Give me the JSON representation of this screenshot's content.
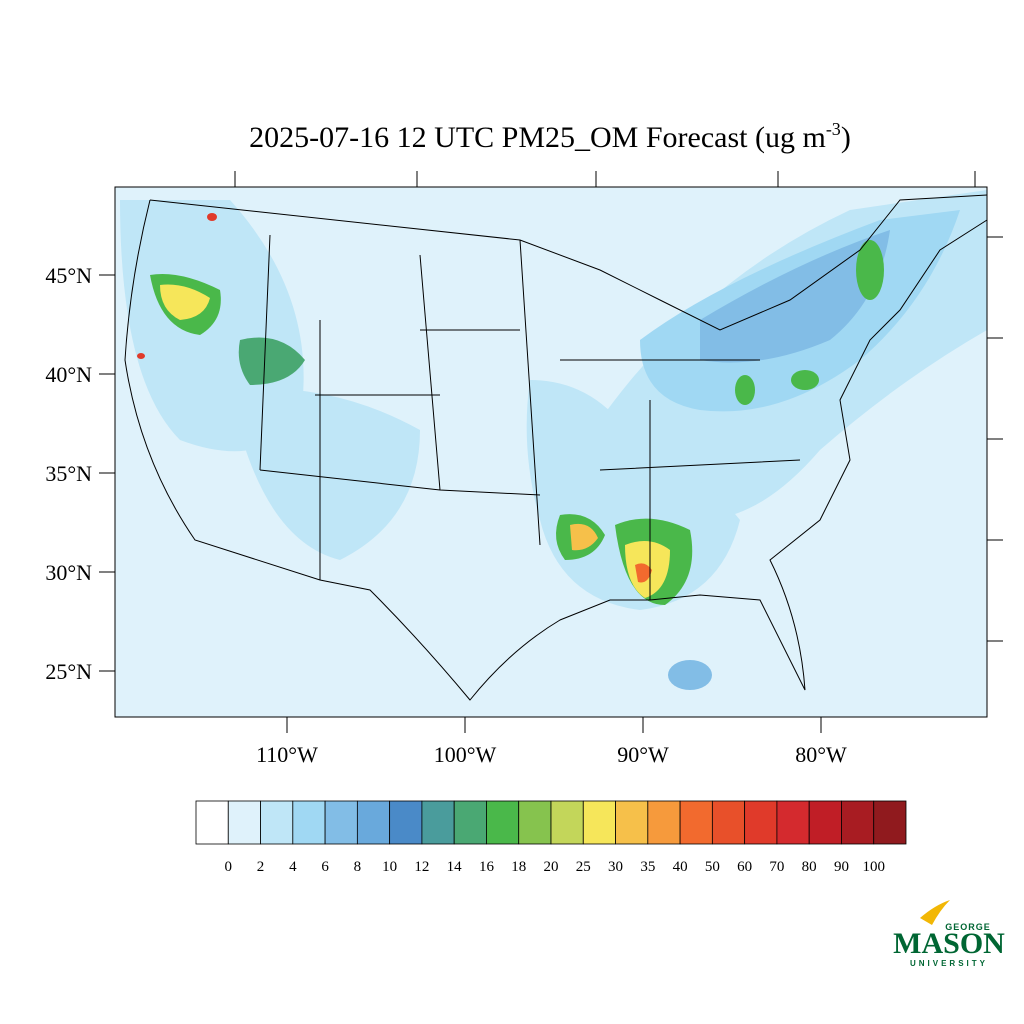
{
  "title": "2025-07-16 12 UTC PM25_OM Forecast (ug m",
  "title_superscript": "-3",
  "title_end": ")",
  "map": {
    "lat_ticks": [
      {
        "value": 45,
        "label": "45°N"
      },
      {
        "value": 40,
        "label": "40°N"
      },
      {
        "value": 35,
        "label": "35°N"
      },
      {
        "value": 30,
        "label": "30°N"
      },
      {
        "value": 25,
        "label": "25°N"
      }
    ],
    "lon_ticks": [
      {
        "value": -110,
        "label": "110°W"
      },
      {
        "value": -100,
        "label": "100°W"
      },
      {
        "value": -90,
        "label": "90°W"
      },
      {
        "value": -80,
        "label": "80°W"
      }
    ]
  },
  "colorbar": {
    "levels": [
      0,
      2,
      4,
      6,
      8,
      10,
      12,
      14,
      16,
      18,
      20,
      25,
      30,
      35,
      40,
      50,
      60,
      70,
      80,
      90,
      100
    ],
    "colors": [
      "#ffffff",
      "#dff2fb",
      "#bfe6f7",
      "#a0d8f3",
      "#82bde6",
      "#69a9dc",
      "#4a8ac8",
      "#4a9c9c",
      "#4aa873",
      "#4ab84a",
      "#86c34e",
      "#c3d65a",
      "#f6e65a",
      "#f6c04a",
      "#f69a3c",
      "#f26a2e",
      "#e8502a",
      "#e03a2a",
      "#d42a2e",
      "#c01e26",
      "#a81c22",
      "#901a1e"
    ]
  },
  "logo": {
    "top": "GEORGE",
    "main": "MASON",
    "bottom": "UNIVERSITY"
  }
}
